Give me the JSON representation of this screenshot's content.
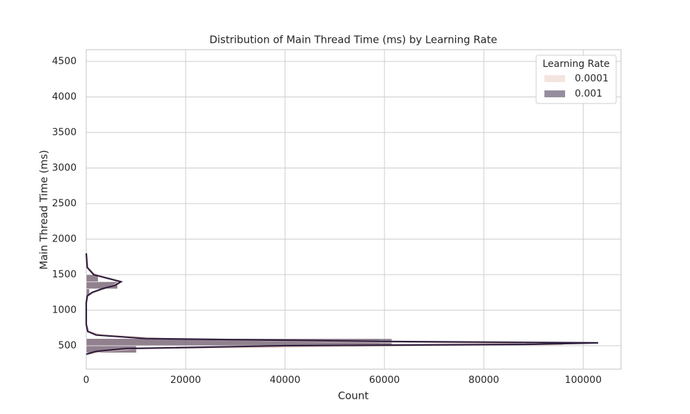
{
  "chart_data": {
    "type": "histogram",
    "orientation": "horizontal",
    "title": "Distribution of Main Thread Time (ms) by Learning Rate",
    "xlabel": "Count",
    "ylabel": "Main Thread Time (ms)",
    "bins": [
      400,
      500,
      600,
      700,
      800,
      900,
      1000,
      1100,
      1200,
      1300,
      1400,
      1500
    ],
    "kde_y": [
      380,
      420,
      460,
      500,
      520,
      540,
      560,
      600,
      650,
      700,
      800,
      1100,
      1200,
      1250,
      1300,
      1350,
      1400,
      1450,
      1500,
      1600,
      1800
    ],
    "series": [
      {
        "name": "0.0001",
        "color": "#e9cbc4",
        "values": [
          10000,
          59000,
          0,
          0,
          0,
          0,
          0,
          0,
          700,
          6500,
          2500
        ],
        "kde": [
          0,
          3000,
          10000,
          60000,
          96000,
          80000,
          50000,
          15000,
          3000,
          500,
          0,
          0,
          300,
          1500,
          3500,
          5500,
          6800,
          4500,
          1800,
          300,
          0
        ]
      },
      {
        "name": "0.001",
        "color": "#2d1e3e",
        "values": [
          10100,
          61500,
          0,
          0,
          0,
          0,
          0,
          0,
          650,
          6300,
          2400
        ],
        "kde": [
          0,
          2000,
          8000,
          40000,
          90000,
          103000,
          60000,
          12000,
          2000,
          300,
          0,
          0,
          200,
          1200,
          3200,
          5800,
          7000,
          4200,
          1500,
          200,
          0
        ]
      }
    ],
    "xlim": [
      0,
      107600
    ],
    "ylim": [
      170,
      4665
    ],
    "xticks": [
      0,
      20000,
      40000,
      60000,
      80000,
      100000
    ],
    "yticks": [
      500,
      1000,
      1500,
      2000,
      2500,
      3000,
      3500,
      4000,
      4500
    ],
    "grid": true,
    "legend_title": "Learning Rate",
    "legend_loc": "upper right"
  }
}
